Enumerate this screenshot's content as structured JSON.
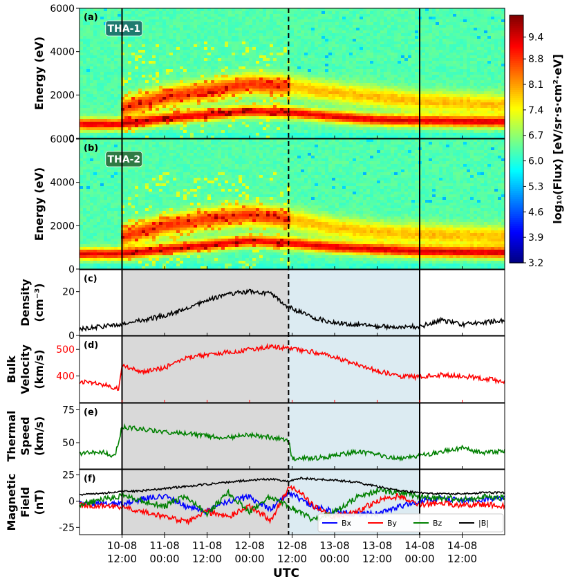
{
  "x_axis": {
    "label": "UTC",
    "ticks": [
      {
        "t": 12,
        "lines": [
          "10-08",
          "12:00"
        ]
      },
      {
        "t": 24,
        "lines": [
          "11-08",
          "00:00"
        ]
      },
      {
        "t": 36,
        "lines": [
          "11-08",
          "12:00"
        ]
      },
      {
        "t": 48,
        "lines": [
          "12-08",
          "00:00"
        ]
      },
      {
        "t": 60,
        "lines": [
          "12-08",
          "12:00"
        ]
      },
      {
        "t": 72,
        "lines": [
          "13-08",
          "00:00"
        ]
      },
      {
        "t": 84,
        "lines": [
          "13-08",
          "12:00"
        ]
      },
      {
        "t": 96,
        "lines": [
          "14-08",
          "00:00"
        ]
      },
      {
        "t": 108,
        "lines": [
          "14-08",
          "12:00"
        ]
      }
    ],
    "range_hours": [
      0,
      120
    ]
  },
  "markers": {
    "solid_hours": [
      12,
      96
    ],
    "dashed_hours": [
      59
    ]
  },
  "shading": [
    {
      "from": 12,
      "to": 59,
      "color": "#d9d9d9"
    },
    {
      "from": 59,
      "to": 96,
      "color": "#dcebf2"
    }
  ],
  "chart_data": [
    {
      "type": "heatmap",
      "panel": "(a)",
      "badge": "THA-1",
      "ylabel": "Energy (eV)",
      "yticks": [
        0,
        2000,
        4000,
        6000
      ],
      "ylim": [
        0,
        6000
      ],
      "bands": [
        {
          "x": [
            0,
            12,
            24,
            36,
            48,
            59,
            72,
            84,
            96,
            120
          ],
          "e": [
            650,
            650,
            900,
            1100,
            1250,
            1200,
            1000,
            850,
            800,
            750
          ]
        },
        {
          "x": [
            12,
            24,
            36,
            48,
            59,
            72,
            84,
            96,
            120
          ],
          "e": [
            1400,
            1900,
            2200,
            2500,
            2400,
            2100,
            1900,
            1700,
            1550
          ]
        }
      ]
    },
    {
      "type": "heatmap",
      "panel": "(b)",
      "badge": "THA-2",
      "ylabel": "Energy (eV)",
      "yticks": [
        0,
        2000,
        4000,
        6000
      ],
      "ylim": [
        0,
        6000
      ],
      "bands": [
        {
          "x": [
            0,
            12,
            24,
            36,
            48,
            59,
            72,
            84,
            96,
            120
          ],
          "e": [
            700,
            700,
            900,
            1100,
            1300,
            1200,
            1000,
            900,
            800,
            750
          ]
        },
        {
          "x": [
            12,
            24,
            36,
            48,
            59,
            72,
            84,
            96,
            120
          ],
          "e": [
            1500,
            2000,
            2300,
            2500,
            2300,
            1900,
            1700,
            1600,
            1500
          ]
        }
      ]
    },
    {
      "type": "colorbar",
      "label": "log₁₀(Flux) [eV/sr·s·cm²·eV]",
      "ticks": [
        3.2,
        3.9,
        4.6,
        5.3,
        6.0,
        6.7,
        7.4,
        8.1,
        8.8,
        9.4
      ],
      "range": [
        3.2,
        10.0
      ],
      "colormap": [
        "#00007f",
        "#0000ff",
        "#007fff",
        "#00ffff",
        "#7fff7f",
        "#ffff00",
        "#ff7f00",
        "#ff0000",
        "#7f0000"
      ]
    },
    {
      "type": "line",
      "panel": "(c)",
      "ylabel": [
        "Density",
        "(cm⁻³)"
      ],
      "ylabel_color": "#000000",
      "yticks": [
        0,
        20
      ],
      "ylim": [
        0,
        30
      ],
      "series": [
        {
          "color": "#000000",
          "x": [
            0,
            6,
            12,
            18,
            24,
            30,
            36,
            42,
            48,
            54,
            59,
            66,
            72,
            78,
            84,
            90,
            96,
            102,
            108,
            114,
            120
          ],
          "y": [
            3,
            4,
            5,
            7,
            9,
            12,
            16,
            19,
            20,
            19,
            13,
            8,
            6,
            5,
            4,
            4,
            4,
            7,
            5,
            6,
            7
          ]
        }
      ]
    },
    {
      "type": "line",
      "panel": "(d)",
      "ylabel": [
        "Bulk",
        "Velocity",
        "(km/s)"
      ],
      "ylabel_color": "#000000",
      "tick_color": "#ff0000",
      "yticks": [
        400,
        500
      ],
      "ylim": [
        300,
        550
      ],
      "series": [
        {
          "color": "#ff0000",
          "x": [
            0,
            6,
            11,
            12,
            18,
            24,
            30,
            36,
            42,
            48,
            54,
            59,
            66,
            72,
            78,
            84,
            90,
            96,
            102,
            108,
            114,
            120
          ],
          "y": [
            380,
            370,
            350,
            440,
            415,
            430,
            470,
            480,
            490,
            500,
            510,
            505,
            490,
            470,
            445,
            420,
            400,
            395,
            405,
            400,
            390,
            380
          ]
        }
      ]
    },
    {
      "type": "line",
      "panel": "(e)",
      "ylabel": [
        "Thermal",
        "Speed",
        "(km/s)"
      ],
      "ylabel_color": "#000000",
      "yticks": [
        50,
        75
      ],
      "ylim": [
        30,
        80
      ],
      "series": [
        {
          "color": "#008000",
          "x": [
            0,
            6,
            10,
            12,
            18,
            24,
            30,
            36,
            42,
            48,
            54,
            59,
            60,
            66,
            72,
            78,
            84,
            90,
            96,
            102,
            108,
            114,
            120
          ],
          "y": [
            42,
            43,
            40,
            62,
            60,
            58,
            57,
            55,
            54,
            56,
            54,
            52,
            38,
            38,
            40,
            43,
            41,
            38,
            40,
            43,
            46,
            42,
            44
          ]
        }
      ]
    },
    {
      "type": "line",
      "panel": "(f)",
      "ylabel": [
        "Magnetic",
        "Field",
        "(nT)"
      ],
      "ylabel_color": "#000000",
      "yticks": [
        -25,
        0,
        25
      ],
      "ylim": [
        -32,
        30
      ],
      "legend": {
        "position": "bottom-right",
        "entries": [
          {
            "name": "Bx",
            "color": "#0000ff"
          },
          {
            "name": "By",
            "color": "#ff0000"
          },
          {
            "name": "Bz",
            "color": "#008000"
          },
          {
            "name": "|B|",
            "color": "#000000"
          }
        ]
      },
      "series": [
        {
          "name": "Bx",
          "color": "#0000ff",
          "x": [
            0,
            12,
            18,
            24,
            30,
            36,
            42,
            48,
            54,
            59,
            66,
            72,
            78,
            84,
            90,
            96,
            102,
            108,
            114,
            120
          ],
          "y": [
            -2,
            -3,
            2,
            5,
            -5,
            -10,
            0,
            4,
            -8,
            8,
            -5,
            -10,
            -12,
            -12,
            -6,
            0,
            3,
            0,
            2,
            3
          ]
        },
        {
          "name": "By",
          "color": "#ff0000",
          "x": [
            0,
            12,
            18,
            24,
            30,
            36,
            42,
            48,
            54,
            59,
            62,
            66,
            72,
            78,
            84,
            90,
            96,
            102,
            108,
            114,
            120
          ],
          "y": [
            -4,
            -5,
            -10,
            -15,
            -20,
            -10,
            -15,
            -5,
            -18,
            12,
            10,
            -5,
            -15,
            -10,
            0,
            5,
            -3,
            -2,
            -4,
            -3,
            -5
          ]
        },
        {
          "name": "Bz",
          "color": "#008000",
          "x": [
            0,
            12,
            18,
            24,
            30,
            36,
            42,
            48,
            54,
            59,
            66,
            72,
            78,
            84,
            90,
            96,
            102,
            108,
            114,
            120
          ],
          "y": [
            -3,
            5,
            0,
            -5,
            5,
            -12,
            8,
            -10,
            5,
            -5,
            -18,
            -10,
            3,
            10,
            8,
            4,
            3,
            2,
            4,
            3
          ]
        },
        {
          "name": "|B|",
          "color": "#000000",
          "x": [
            0,
            12,
            18,
            24,
            30,
            36,
            42,
            48,
            54,
            59,
            62,
            66,
            72,
            78,
            84,
            90,
            96,
            102,
            108,
            114,
            120
          ],
          "y": [
            6,
            9,
            10,
            12,
            14,
            16,
            18,
            20,
            21,
            19,
            22,
            21,
            20,
            18,
            14,
            10,
            8,
            7,
            7,
            8,
            8
          ]
        }
      ]
    }
  ]
}
